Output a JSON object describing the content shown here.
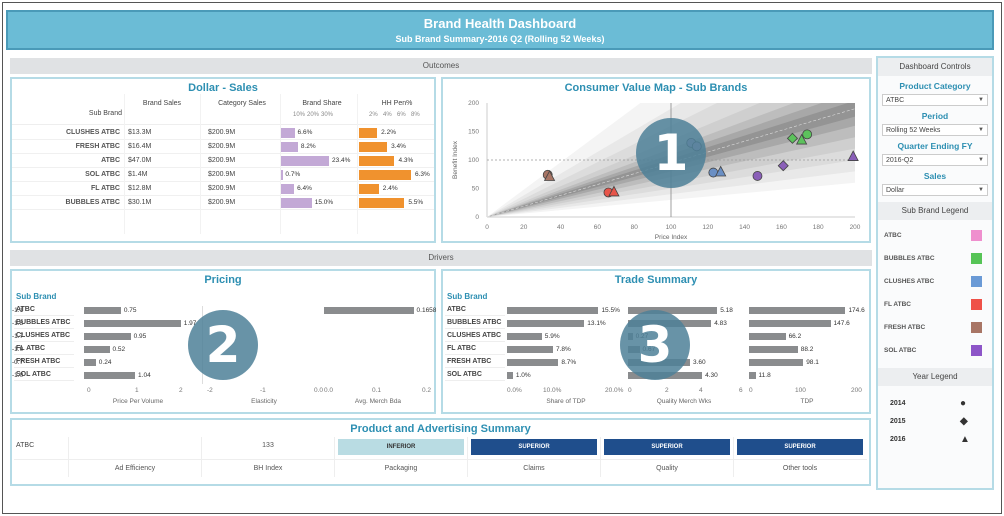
{
  "header": {
    "title": "Brand Health Dashboard",
    "subtitle": "Sub Brand Summary-2016 Q2 (Rolling 52 Weeks)"
  },
  "sections": {
    "outcomes": "Outcomes",
    "drivers": "Drivers"
  },
  "overlays": [
    "1",
    "2",
    "3"
  ],
  "dollar_sales": {
    "title": "Dollar - Sales",
    "columns": [
      "Sub Brand",
      "Brand Sales",
      "Category Sales",
      "Brand Share",
      "HH Pen%"
    ],
    "brand_share_ticks": [
      "10%",
      "20%",
      "30%"
    ],
    "hh_pen_ticks": [
      "2%",
      "4%",
      "6%",
      "8%"
    ],
    "bar_colors": {
      "brand_share": "#c3a9d6",
      "hh_pen": "#f0922e"
    },
    "rows": [
      {
        "brand": "CLUSHES ATBC",
        "brand_sales": "$13.3M",
        "category_sales": "$200.9M",
        "brand_share": 6.6,
        "brand_share_label": "6.6%",
        "hh_pen": 2.2,
        "hh_pen_label": "2.2%"
      },
      {
        "brand": "FRESH ATBC",
        "brand_sales": "$16.4M",
        "category_sales": "$200.9M",
        "brand_share": 8.2,
        "brand_share_label": "8.2%",
        "hh_pen": 3.4,
        "hh_pen_label": "3.4%"
      },
      {
        "brand": "ATBC",
        "brand_sales": "$47.0M",
        "category_sales": "$200.9M",
        "brand_share": 23.4,
        "brand_share_label": "23.4%",
        "hh_pen": 4.3,
        "hh_pen_label": "4.3%"
      },
      {
        "brand": "SOL ATBC",
        "brand_sales": "$1.4M",
        "category_sales": "$200.9M",
        "brand_share": 0.7,
        "brand_share_label": "0.7%",
        "hh_pen": 6.3,
        "hh_pen_label": "6.3%"
      },
      {
        "brand": "FL ATBC",
        "brand_sales": "$12.8M",
        "category_sales": "$200.9M",
        "brand_share": 6.4,
        "brand_share_label": "6.4%",
        "hh_pen": 2.4,
        "hh_pen_label": "2.4%"
      },
      {
        "brand": "BUBBLES ATBC",
        "brand_sales": "$30.1M",
        "category_sales": "$200.9M",
        "brand_share": 15.0,
        "brand_share_label": "15.0%",
        "hh_pen": 5.5,
        "hh_pen_label": "5.5%"
      }
    ]
  },
  "chart_data": {
    "type": "scatter",
    "title": "Consumer Value Map - Sub Brands",
    "xlabel": "Price Index",
    "ylabel": "Benefit Index",
    "xlim": [
      0,
      200
    ],
    "ylim": [
      0,
      200
    ],
    "x_ticks": [
      "0",
      "20",
      "40",
      "60",
      "80",
      "100",
      "120",
      "140",
      "160",
      "180",
      "200"
    ],
    "y_ticks": [
      "0",
      "50",
      "100",
      "150",
      "200"
    ],
    "reference_lines": {
      "x": 100,
      "y": 100
    },
    "points": [
      {
        "brand": "FRESH ATBC",
        "year": "2014",
        "shape": "circle",
        "x": 33,
        "y": 74,
        "color": "#a87565"
      },
      {
        "brand": "FRESH ATBC",
        "year": "2016",
        "shape": "triangle",
        "x": 34,
        "y": 71,
        "color": "#a87565"
      },
      {
        "brand": "FL ATBC",
        "year": "2014",
        "shape": "circle",
        "x": 66,
        "y": 43,
        "color": "#e8554a"
      },
      {
        "brand": "FL ATBC",
        "year": "2016",
        "shape": "triangle",
        "x": 69,
        "y": 44,
        "color": "#e8554a"
      },
      {
        "brand": "ATBC",
        "year": "2014",
        "shape": "circle",
        "x": 111,
        "y": 130,
        "color": "#b39ac9"
      },
      {
        "brand": "ATBC",
        "year": "2015",
        "shape": "circle",
        "x": 114,
        "y": 124,
        "color": "#b39ac9"
      },
      {
        "brand": "CLUSHES ATBC",
        "year": "2014",
        "shape": "circle",
        "x": 123,
        "y": 78,
        "color": "#6a8fc4"
      },
      {
        "brand": "CLUSHES ATBC",
        "year": "2016",
        "shape": "triangle",
        "x": 127,
        "y": 79,
        "color": "#6a8fc4"
      },
      {
        "brand": "SOL ATBC",
        "year": "2014",
        "shape": "circle",
        "x": 147,
        "y": 72,
        "color": "#8a5fb8"
      },
      {
        "brand": "SOL ATBC",
        "year": "2015",
        "shape": "diamond",
        "x": 161,
        "y": 90,
        "color": "#8a5fb8"
      },
      {
        "brand": "SOL ATBC",
        "year": "2016",
        "shape": "triangle",
        "x": 199,
        "y": 106,
        "color": "#8a5fb8"
      },
      {
        "brand": "BUBBLES ATBC",
        "year": "2015",
        "shape": "diamond",
        "x": 166,
        "y": 138,
        "color": "#5cc25c"
      },
      {
        "brand": "BUBBLES ATBC",
        "year": "2016",
        "shape": "triangle",
        "x": 171,
        "y": 135,
        "color": "#5cc25c"
      },
      {
        "brand": "BUBBLES ATBC",
        "year": "2014",
        "shape": "circle",
        "x": 174,
        "y": 145,
        "color": "#5cc25c"
      }
    ]
  },
  "pricing": {
    "title": "Pricing",
    "sub_brand_label": "Sub Brand",
    "brands": [
      "ATBC",
      "BUBBLES ATBC",
      "CLUSHES ATBC",
      "FL ATBC",
      "FRESH ATBC",
      "SOL ATBC"
    ],
    "price_per_volume": {
      "label": "Price Per Volume",
      "ticks": [
        "0",
        "1",
        "2"
      ],
      "max": 2.2,
      "values": [
        0.75,
        1.97,
        0.95,
        0.52,
        0.24,
        1.04
      ],
      "labels": [
        "0.75",
        "1.97",
        "0.95",
        "0.52",
        "0.24",
        "1.04"
      ]
    },
    "elasticity": {
      "label": "Elasticity",
      "ticks": [
        "-2",
        "-1",
        "0.0"
      ],
      "min": -2.2,
      "values": [
        -1.1,
        -1.3,
        -1.7,
        -1.0,
        -0.7,
        -1.0
      ],
      "labels": [
        "-1.1",
        "-1.3",
        "-1.7",
        "-1.0",
        "-0.7",
        "-1.0"
      ]
    },
    "avg_merch_bda": {
      "label": "Avg. Merch Bda",
      "ticks": [
        "0.0",
        "0.1",
        "0.2"
      ],
      "max": 0.2,
      "values": [
        0.1658,
        null,
        null,
        null,
        null,
        null
      ],
      "labels": [
        "0.1658",
        "",
        "",
        "",
        "",
        ""
      ]
    }
  },
  "trade": {
    "title": "Trade Summary",
    "sub_brand_label": "Sub Brand",
    "brands": [
      "ATBC",
      "BUBBLES ATBC",
      "CLUSHES ATBC",
      "FL ATBC",
      "FRESH ATBC",
      "SOL ATBC"
    ],
    "share_of_tdp": {
      "label": "Share of TDP",
      "ticks": [
        "0.0%",
        "10.0%",
        "20.0%"
      ],
      "max": 20,
      "values": [
        15.5,
        13.1,
        5.9,
        7.8,
        8.7,
        1.0
      ],
      "labels": [
        "15.5%",
        "13.1%",
        "5.9%",
        "7.8%",
        "8.7%",
        "1.0%"
      ]
    },
    "quality_merch_wks": {
      "label": "Quality Merch Wks",
      "ticks": [
        "0",
        "2",
        "4",
        "6"
      ],
      "max": 6.5,
      "values": [
        5.18,
        4.83,
        0.27,
        0.67,
        3.6,
        4.3
      ],
      "labels": [
        "5.18",
        "4.83",
        "0.27",
        "0.67",
        "3.60",
        "4.30"
      ]
    },
    "tdp": {
      "label": "TDP",
      "ticks": [
        "0",
        "100",
        "200"
      ],
      "max": 210,
      "values": [
        174.6,
        147.6,
        66.2,
        88.2,
        98.1,
        11.8
      ],
      "labels": [
        "174.6",
        "147.6",
        "66.2",
        "88.2",
        "98.1",
        "11.8"
      ]
    }
  },
  "product_ad": {
    "title": "Product and Advertising Summary",
    "row_label": "ATBC",
    "cells": [
      {
        "label": "Ad Efficiency",
        "value": "",
        "style": "plain"
      },
      {
        "label": "BH Index",
        "value": "133",
        "style": "plain"
      },
      {
        "label": "Packaging",
        "value": "INFERIOR",
        "style": "inferior"
      },
      {
        "label": "Claims",
        "value": "SUPERIOR",
        "style": "superior"
      },
      {
        "label": "Quality",
        "value": "SUPERIOR",
        "style": "superior"
      },
      {
        "label": "Other tools",
        "value": "SUPERIOR",
        "style": "superior"
      }
    ],
    "colors": {
      "inferior": "#b9dce3",
      "superior": "#1f4e8c"
    }
  },
  "controls": {
    "title": "Dashboard Controls",
    "filters": [
      {
        "label": "Product Category",
        "value": "ATBC"
      },
      {
        "label": "Period",
        "value": "Rolling 52 Weeks"
      },
      {
        "label": "Quarter Ending FY",
        "value": "2016-Q2"
      },
      {
        "label": "Sales",
        "value": "Dollar"
      }
    ],
    "sub_brand_legend_title": "Sub Brand Legend",
    "sub_brand_legend": [
      {
        "name": "ATBC",
        "color": "#ef8fce"
      },
      {
        "name": "BUBBLES ATBC",
        "color": "#56c456"
      },
      {
        "name": "CLUSHES ATBC",
        "color": "#6a9ad6"
      },
      {
        "name": "FL ATBC",
        "color": "#ef5148"
      },
      {
        "name": "FRESH ATBC",
        "color": "#a87565"
      },
      {
        "name": "SOL ATBC",
        "color": "#8d55c8"
      }
    ],
    "year_legend_title": "Year Legend",
    "year_legend": [
      {
        "year": "2014",
        "glyph": "●"
      },
      {
        "year": "2015",
        "glyph": "◆"
      },
      {
        "year": "2016",
        "glyph": "▲"
      }
    ]
  }
}
